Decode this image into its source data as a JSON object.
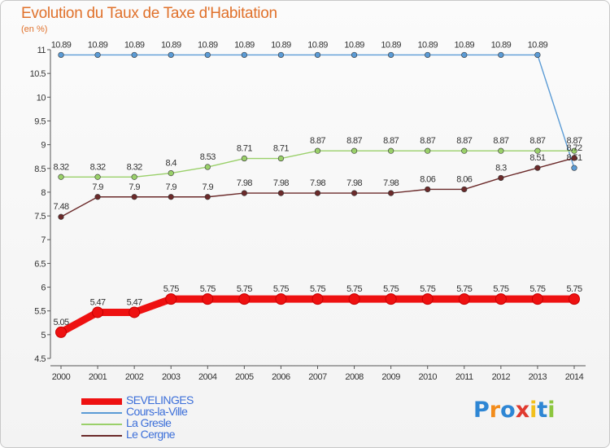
{
  "chart_data": {
    "type": "line",
    "title": "Evolution du Taux de Taxe d'Habitation",
    "subtitle": "(en %)",
    "xlabel": "",
    "ylabel": "",
    "ylim": [
      4.5,
      11
    ],
    "yticks": [
      "4.5",
      "5",
      "5.5",
      "6",
      "6.5",
      "7",
      "7.5",
      "8",
      "8.5",
      "9",
      "9.5",
      "10",
      "10.5",
      "11"
    ],
    "categories": [
      "2000",
      "2001",
      "2002",
      "2003",
      "2004",
      "2005",
      "2006",
      "2007",
      "2008",
      "2009",
      "2010",
      "2011",
      "2012",
      "2013",
      "2014"
    ],
    "series": [
      {
        "name": "Cours-la-Ville",
        "color": "#5b9bd5",
        "values": [
          10.89,
          10.89,
          10.89,
          10.89,
          10.89,
          10.89,
          10.89,
          10.89,
          10.89,
          10.89,
          10.89,
          10.89,
          10.89,
          10.89,
          8.51
        ],
        "labels": [
          "10.89",
          "10.89",
          "10.89",
          "10.89",
          "10.89",
          "10.89",
          "10.89",
          "10.89",
          "10.89",
          "10.89",
          "10.89",
          "10.89",
          "10.89",
          "10.89",
          "8.51"
        ]
      },
      {
        "name": "La Gresle",
        "color": "#9ad06a",
        "values": [
          8.32,
          8.32,
          8.32,
          8.4,
          8.53,
          8.71,
          8.71,
          8.87,
          8.87,
          8.87,
          8.87,
          8.87,
          8.87,
          8.87,
          8.87
        ],
        "labels": [
          "8.32",
          "8.32",
          "8.32",
          "8.4",
          "8.53",
          "8.71",
          "8.71",
          "8.87",
          "8.87",
          "8.87",
          "8.87",
          "8.87",
          "8.87",
          "8.87",
          "8.87"
        ]
      },
      {
        "name": "Le Cergne",
        "color": "#6b2a2a",
        "values": [
          7.48,
          7.9,
          7.9,
          7.9,
          7.9,
          7.98,
          7.98,
          7.98,
          7.98,
          7.98,
          8.06,
          8.06,
          8.3,
          8.51,
          8.72
        ],
        "labels": [
          "7.48",
          "7.9",
          "7.9",
          "7.9",
          "7.9",
          "7.98",
          "7.98",
          "7.98",
          "7.98",
          "7.98",
          "8.06",
          "8.06",
          "8.3",
          "8.51",
          "8.72"
        ]
      },
      {
        "name": "SEVELINGES",
        "color": "#ee1111",
        "values": [
          5.05,
          5.47,
          5.47,
          5.75,
          5.75,
          5.75,
          5.75,
          5.75,
          5.75,
          5.75,
          5.75,
          5.75,
          5.75,
          5.75,
          5.75
        ],
        "labels": [
          "5.05",
          "5.47",
          "5.47",
          "5.75",
          "5.75",
          "5.75",
          "5.75",
          "5.75",
          "5.75",
          "5.75",
          "5.75",
          "5.75",
          "5.75",
          "5.75",
          "5.75"
        ]
      }
    ],
    "legend": [
      {
        "name": "SEVELINGES",
        "color": "#ee1111"
      },
      {
        "name": "Cours-la-Ville",
        "color": "#5b9bd5"
      },
      {
        "name": "La Gresle",
        "color": "#9ad06a"
      },
      {
        "name": "Le Cergne",
        "color": "#6b2a2a"
      }
    ]
  },
  "logo": {
    "text": "Proxiti",
    "letters": [
      "P",
      "r",
      "o",
      "x",
      "i",
      "t",
      "i"
    ],
    "colors": [
      "#2e86d4",
      "#f28c1c",
      "#2e86d4",
      "#e03a2f",
      "#f2c01c",
      "#2e86d4",
      "#8cc63f"
    ]
  }
}
